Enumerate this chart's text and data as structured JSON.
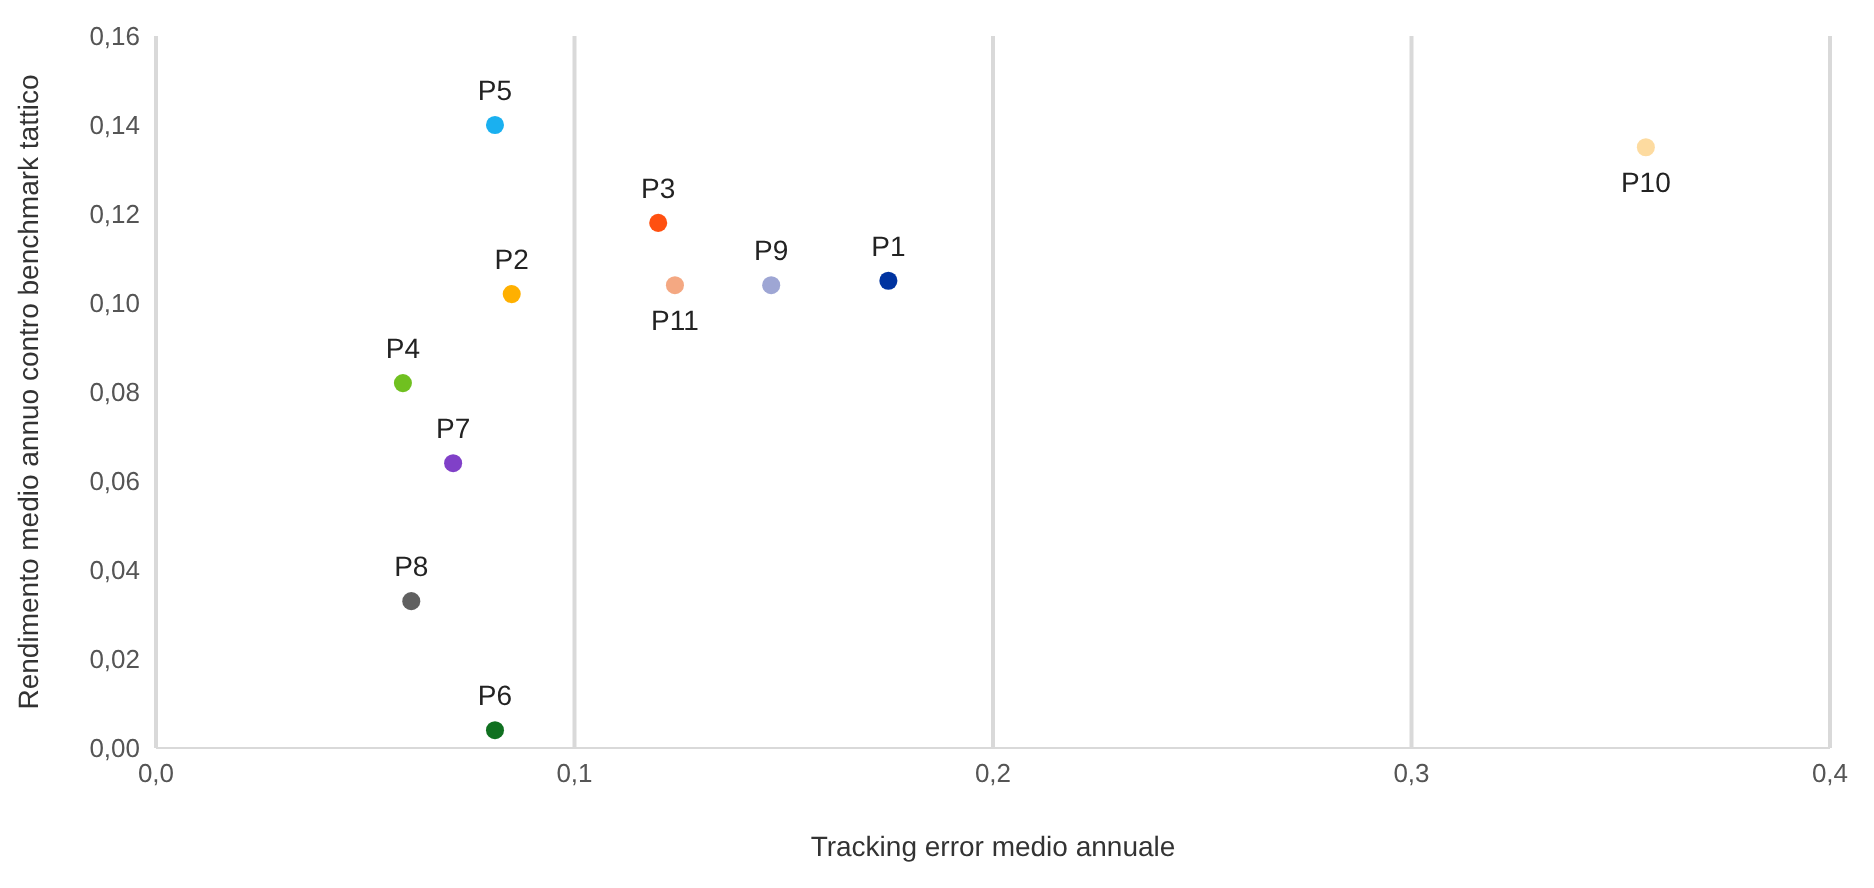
{
  "chart_data": {
    "type": "scatter",
    "xlabel": "Tracking error medio annuale",
    "ylabel": "Rendimento medio annuo  contro benchmark tattico",
    "xlim": [
      0,
      0.4
    ],
    "ylim": [
      0,
      0.16
    ],
    "xticks": [
      {
        "value": 0,
        "label": "0,0"
      },
      {
        "value": 0.1,
        "label": "0,1"
      },
      {
        "value": 0.2,
        "label": "0,2"
      },
      {
        "value": 0.3,
        "label": "0,3"
      },
      {
        "value": 0.4,
        "label": "0,4"
      }
    ],
    "yticks": [
      {
        "value": 0,
        "label": "0,00"
      },
      {
        "value": 0.02,
        "label": "0,02"
      },
      {
        "value": 0.04,
        "label": "0,04"
      },
      {
        "value": 0.06,
        "label": "0,06"
      },
      {
        "value": 0.08,
        "label": "0,08"
      },
      {
        "value": 0.1,
        "label": "0,10"
      },
      {
        "value": 0.12,
        "label": "0,12"
      },
      {
        "value": 0.14,
        "label": "0,14"
      },
      {
        "value": 0.16,
        "label": "0,16"
      }
    ],
    "grid": "x",
    "marker": "circle",
    "series": [
      {
        "name": "P1",
        "color": "#0033a0",
        "x": [
          0.175
        ],
        "values": [
          0.105
        ]
      },
      {
        "name": "P2",
        "color": "#ffb000",
        "x": [
          0.085
        ],
        "values": [
          0.102
        ]
      },
      {
        "name": "P3",
        "color": "#ff5010",
        "x": [
          0.12
        ],
        "values": [
          0.118
        ]
      },
      {
        "name": "P4",
        "color": "#70c020",
        "x": [
          0.059
        ],
        "values": [
          0.082
        ]
      },
      {
        "name": "P5",
        "color": "#1ab0f0",
        "x": [
          0.081
        ],
        "values": [
          0.14
        ]
      },
      {
        "name": "P6",
        "color": "#107020",
        "x": [
          0.081
        ],
        "values": [
          0.004
        ]
      },
      {
        "name": "P7",
        "color": "#8040c8",
        "x": [
          0.071
        ],
        "values": [
          0.064
        ]
      },
      {
        "name": "P8",
        "color": "#606060",
        "x": [
          0.061
        ],
        "values": [
          0.033
        ]
      },
      {
        "name": "P9",
        "color": "#9ea6d4",
        "x": [
          0.147
        ],
        "values": [
          0.104
        ]
      },
      {
        "name": "P10",
        "color": "#fddba0",
        "x": [
          0.356
        ],
        "values": [
          0.135
        ]
      },
      {
        "name": "P11",
        "color": "#f4a882",
        "x": [
          0.124
        ],
        "values": [
          0.104
        ]
      }
    ]
  }
}
